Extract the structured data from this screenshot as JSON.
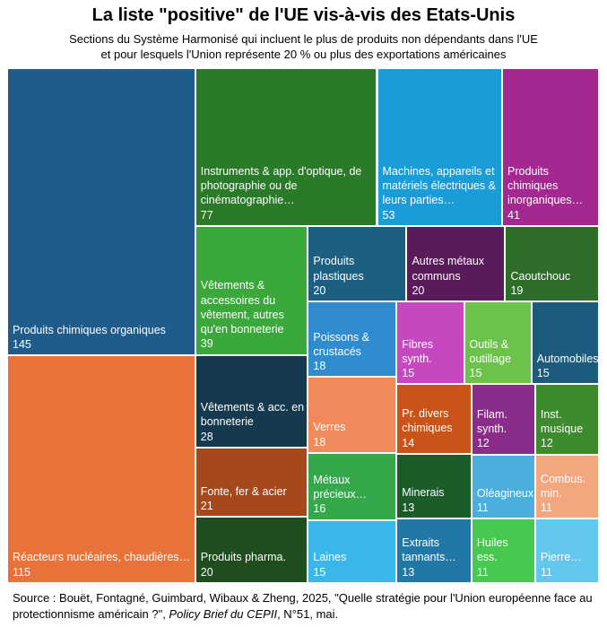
{
  "chart_data": {
    "type": "treemap",
    "title": "La liste \"positive\" de l'UE vis-à-vis des Etats-Unis",
    "subtitle": [
      "Sections du Système Harmonisé qui incluent le plus de produits non dépendants dans l'UE",
      "et pour lesquels l'Union représente 20 % ou plus des exportations américaines"
    ],
    "categories": [
      "Produits chimiques organiques",
      "Réacteurs nucléaires, chaudières…",
      "Instruments & app. d'optique, de photographie ou de cinématographie…",
      "Machines, appareils et matériels électriques & leurs parties…",
      "Produits chimiques inorganiques…",
      "Vêtements & accessoires du vêtement, autres qu'en bonneterie",
      "Vêtements & acc. en bonneterie",
      "Fonte, fer & acier",
      "Produits pharma.",
      "Produits plastiques",
      "Autres métaux communs",
      "Caoutchouc",
      "Poissons & crustacés",
      "Verres",
      "Métaux précieux…",
      "Laines",
      "Fibres synth.",
      "Outils & outillage",
      "Automobiles",
      "Pr. divers chimiques",
      "Minerais",
      "Extraits tannants…",
      "Filam. synth.",
      "Inst. musique",
      "Oléagineux",
      "Combus. min.",
      "Huiles ess.",
      "Pierre…"
    ],
    "values": [
      145,
      115,
      77,
      53,
      41,
      39,
      28,
      21,
      20,
      20,
      20,
      19,
      18,
      18,
      16,
      15,
      15,
      15,
      15,
      14,
      13,
      13,
      12,
      12,
      11,
      11,
      11,
      11
    ],
    "colors": [
      "#1f5c8b",
      "#e8733a",
      "#2a7a2a",
      "#1a9cd8",
      "#a3288f",
      "#3aa83a",
      "#153a4f",
      "#a5481c",
      "#1f4d1f",
      "#1c5f80",
      "#5a1b5a",
      "#2f6d2a",
      "#2e8ccf",
      "#f08a5a",
      "#34a84a",
      "#3ab6ea",
      "#c647c0",
      "#6cc24a",
      "#1c5b7c",
      "#c95318",
      "#1b5c2a",
      "#2178a8",
      "#8a2d8a",
      "#3e8a2e",
      "#4aaedf",
      "#f3a77f",
      "#46c94e",
      "#63c8ef"
    ],
    "source": [
      "Source : Bouët, Fontagné, Guimbard, Wibaux & Zheng, 2025, \"Quelle stratégie pour l'Union européenne face au protectionnisme américain ?\", ",
      "Policy Brief du CEPII",
      ", N°51, mai."
    ]
  }
}
